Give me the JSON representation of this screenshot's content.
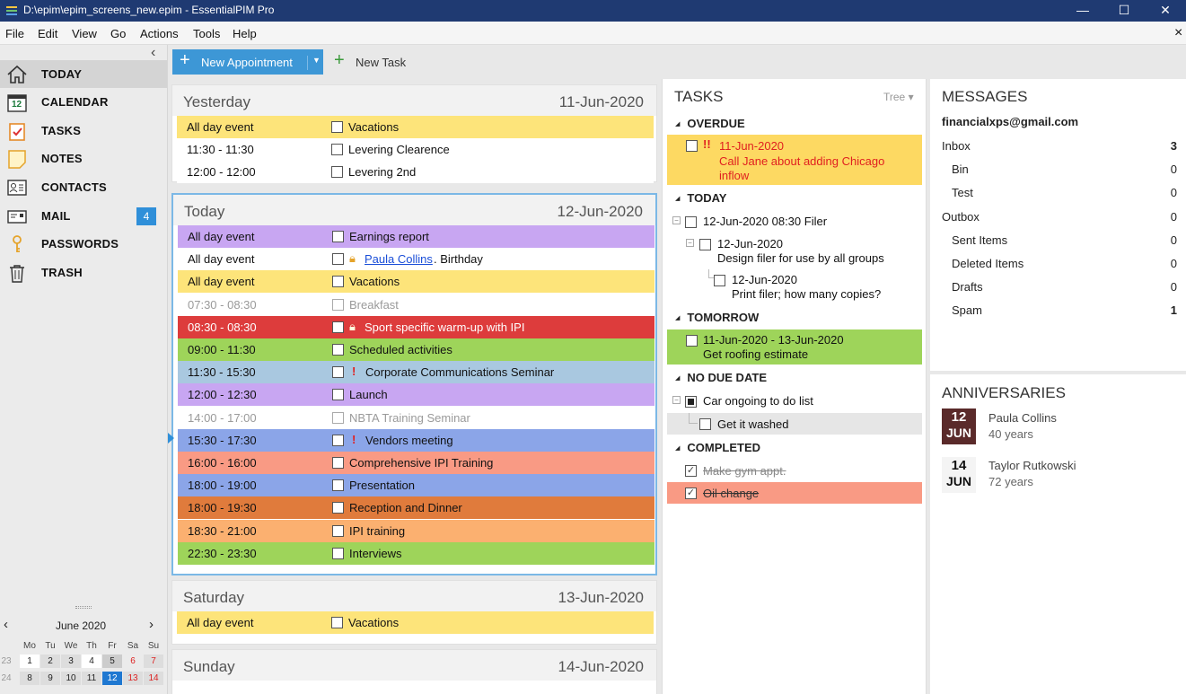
{
  "window": {
    "title": "D:\\epim\\epim_screens_new.epim - EssentialPIM Pro",
    "minimize": "—",
    "maximize": "☐",
    "close": "✕",
    "menu_close": "×"
  },
  "menu": [
    "File",
    "Edit",
    "View",
    "Go",
    "Actions",
    "Tools",
    "Help"
  ],
  "sidebar": {
    "collapse": "‹",
    "items": [
      {
        "label": "TODAY",
        "icon": "home-icon"
      },
      {
        "label": "CALENDAR",
        "icon": "calendar-icon",
        "day": "12"
      },
      {
        "label": "TASKS",
        "icon": "tasks-icon"
      },
      {
        "label": "NOTES",
        "icon": "notes-icon"
      },
      {
        "label": "CONTACTS",
        "icon": "contacts-icon"
      },
      {
        "label": "MAIL",
        "icon": "mail-icon",
        "badge": "4"
      },
      {
        "label": "PASSWORDS",
        "icon": "key-icon"
      },
      {
        "label": "TRASH",
        "icon": "trash-icon"
      }
    ]
  },
  "minical": {
    "title": "June 2020",
    "prev": "‹",
    "next": "›",
    "weekdays": [
      "Mo",
      "Tu",
      "We",
      "Th",
      "Fr",
      "Sa",
      "Su"
    ],
    "weeks": [
      {
        "wk": "23",
        "days": [
          "1",
          "2",
          "3",
          "4",
          "5",
          "6",
          "7"
        ]
      },
      {
        "wk": "24",
        "days": [
          "8",
          "9",
          "10",
          "11",
          "12",
          "13",
          "14"
        ]
      }
    ]
  },
  "toolbar": {
    "new_appointment": "New Appointment",
    "new_task": "New Task"
  },
  "days": [
    {
      "name": "Yesterday",
      "date": "11-Jun-2020",
      "events": [
        {
          "time": "All day event",
          "text": "Vacations",
          "color": "#fde47a"
        },
        {
          "time": "11:30 - 11:30",
          "text": "Levering Clearence",
          "color": "#ffffff"
        },
        {
          "time": "12:00 - 12:00",
          "text": "Levering 2nd",
          "color": "#ffffff"
        }
      ]
    },
    {
      "name": "Today",
      "date": "12-Jun-2020",
      "events": [
        {
          "time": "All day event",
          "text": "Earnings report",
          "color": "#c8a6f2"
        },
        {
          "time": "All day event",
          "text": "Paula Collins",
          "suffix": ". Birthday",
          "color": "#ffffff",
          "link": true,
          "lock": true
        },
        {
          "time": "All day event",
          "text": "Vacations",
          "color": "#fde47a"
        },
        {
          "time": "07:30 - 08:30",
          "text": "Breakfast",
          "color": "#ffffff",
          "muted": true
        },
        {
          "time": "08:30 - 08:30",
          "text": "Sport specific warm-up with IPI",
          "color": "#dd3c3c",
          "white": true,
          "lock": true
        },
        {
          "time": "09:00 - 11:30",
          "text": "Scheduled activities",
          "color": "#9ed45a"
        },
        {
          "time": "11:30 - 15:30",
          "text": "Corporate Communications Seminar",
          "color": "#a9c8e0",
          "excl": true
        },
        {
          "time": "12:00 - 12:30",
          "text": "Launch",
          "color": "#c8a6f2"
        },
        {
          "time": "14:00 - 17:00",
          "text": "NBTA Training Seminar",
          "color": "#ffffff",
          "muted": true
        },
        {
          "time": "15:30 - 17:30",
          "text": "Vendors meeting",
          "color": "#8ba5e8",
          "excl": true
        },
        {
          "time": "16:00 - 16:00",
          "text": "Comprehensive IPI Training",
          "color": "#f99a84"
        },
        {
          "time": "18:00 - 19:00",
          "text": "Presentation",
          "color": "#8ba5e8"
        },
        {
          "time": "18:00 - 19:30",
          "text": "Reception and Dinner",
          "color": "#e07b3c"
        },
        {
          "time": "18:30 - 21:00",
          "text": "IPI training",
          "color": "#fbb070"
        },
        {
          "time": "22:30 - 23:30",
          "text": "Interviews",
          "color": "#9ed45a"
        }
      ]
    },
    {
      "name": "Saturday",
      "date": "13-Jun-2020",
      "events": [
        {
          "time": "All day event",
          "text": "Vacations",
          "color": "#fde47a"
        }
      ]
    },
    {
      "name": "Sunday",
      "date": "14-Jun-2020",
      "events": []
    }
  ],
  "tasks": {
    "title": "TASKS",
    "view": "Tree ▾",
    "sections": {
      "overdue": "OVERDUE",
      "today": "TODAY",
      "tomorrow": "TOMORROW",
      "nodue": "NO DUE DATE",
      "completed": "COMPLETED"
    },
    "overdue": {
      "date": "11-Jun-2020",
      "title": "Call Jane about adding Chicago",
      "title2": "inflow",
      "flag": "!!"
    },
    "today": [
      {
        "text": "12-Jun-2020 08:30 Filer"
      },
      {
        "date": "12-Jun-2020",
        "text": "Design filer for use by all groups"
      },
      {
        "date": "12-Jun-2020",
        "text": "Print filer; how many copies?"
      }
    ],
    "tomorrow": {
      "date": "11-Jun-2020 - 13-Jun-2020",
      "text": "Get roofing estimate"
    },
    "nodue": [
      {
        "text": "Car ongoing to do list"
      },
      {
        "text": "Get it washed"
      }
    ],
    "completed": [
      {
        "text": "Make gym appt."
      },
      {
        "text": "Oil change"
      }
    ]
  },
  "messages": {
    "title": "MESSAGES",
    "account": "financialxps@gmail.com",
    "folders": [
      {
        "name": "Inbox",
        "count": "3",
        "indent": false
      },
      {
        "name": "Bin",
        "count": "0",
        "indent": true
      },
      {
        "name": "Test",
        "count": "0",
        "indent": true
      },
      {
        "name": "Outbox",
        "count": "0",
        "indent": false
      },
      {
        "name": "Sent Items",
        "count": "0",
        "indent": true
      },
      {
        "name": "Deleted Items",
        "count": "0",
        "indent": true
      },
      {
        "name": "Drafts",
        "count": "0",
        "indent": true
      },
      {
        "name": "Spam",
        "count": "1",
        "indent": true
      }
    ]
  },
  "anniversaries": {
    "title": "ANNIVERSARIES",
    "items": [
      {
        "day": "12",
        "month": "JUN",
        "name": "Paula Collins",
        "years": "40 years"
      },
      {
        "day": "14",
        "month": "JUN",
        "name": "Taylor Rutkowski",
        "years": "72 years"
      }
    ]
  }
}
